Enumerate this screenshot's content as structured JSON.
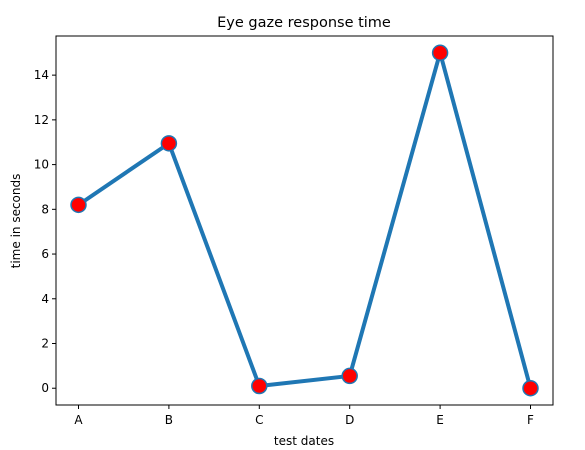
{
  "chart_data": {
    "type": "line",
    "title": "Eye gaze response time",
    "xlabel": "test dates",
    "ylabel": "time in seconds",
    "categories": [
      "A",
      "B",
      "C",
      "D",
      "E",
      "F"
    ],
    "series": [
      {
        "values": [
          8.2,
          10.95,
          0.1,
          0.55,
          15.0,
          0.0
        ]
      }
    ],
    "ylim": [
      -0.75,
      15.75
    ],
    "yticks": [
      0,
      2,
      4,
      6,
      8,
      10,
      12,
      14
    ],
    "line_color": "#1f77b4",
    "marker_face_color": "#ff0000",
    "marker_edge_color": "#1f77b4",
    "grid": false,
    "legend": "none"
  }
}
